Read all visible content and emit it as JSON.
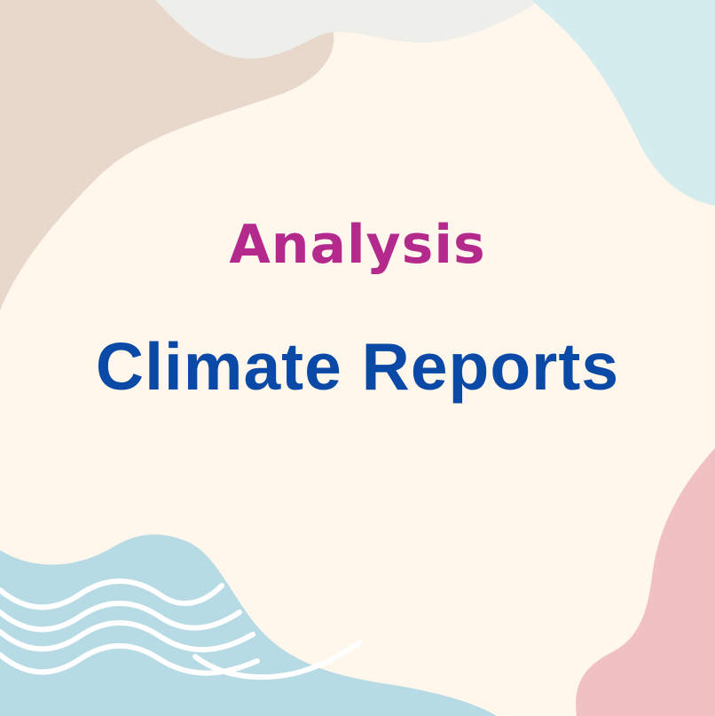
{
  "cover": {
    "eyebrow": "Analysis",
    "title": "Climate Reports"
  },
  "colors": {
    "background": "#fff6ec",
    "beige_shape": "#e7d8cb",
    "grey_shape": "#eeeeea",
    "light_blue_shape": "#d5ecef",
    "blue_wave_shape": "#b7dbe5",
    "pink_shape": "#f1c0c3",
    "wave_lines": "#ffffff",
    "eyebrow_text": "#b32a8c",
    "title_text": "#0a4aa6"
  },
  "icons": {
    "wave_lines": "wave-lines-icon"
  }
}
